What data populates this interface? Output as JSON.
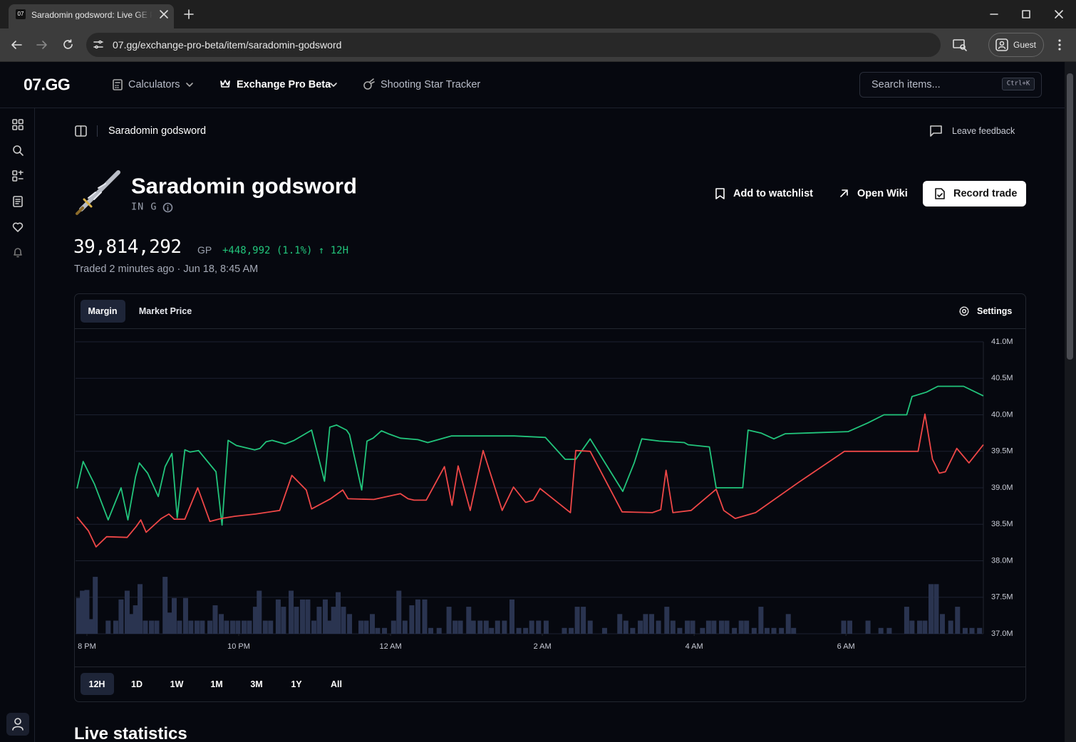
{
  "browser": {
    "tab_icon": "07",
    "tab_title": "Saradomin godsword: Live GE P",
    "url": "07.gg/exchange-pro-beta/item/saradomin-godsword",
    "profile": "Guest"
  },
  "nav": {
    "logo": "07.GG",
    "links": [
      "Calculators",
      "Exchange Pro Beta",
      "Shooting Star Tracker"
    ],
    "search_placeholder": "Search items...",
    "search_shortcut": "Ctrl+K"
  },
  "breadcrumb": "Saradomin godsword",
  "feedback": "Leave feedback",
  "item": {
    "name": "Saradomin godsword",
    "code": "IN G",
    "actions": [
      "Add to watchlist",
      "Open Wiki",
      "Record trade"
    ],
    "price": "39,814,292",
    "unit": "GP",
    "change": "+448,992 (1.1%) ↑ 12H",
    "traded": "Traded 2 minutes ago · Jun 18, 8:45 AM"
  },
  "chart_tabs": [
    "Margin",
    "Market Price"
  ],
  "settings": "Settings",
  "chart_data": {
    "type": "line",
    "grid": true,
    "xlim": [
      19.85,
      31.81
    ],
    "xticks": [
      {
        "value": 20,
        "label": "8 PM"
      },
      {
        "value": 22,
        "label": "10 PM"
      },
      {
        "value": 24,
        "label": "12 AM"
      },
      {
        "value": 26,
        "label": "2 AM"
      },
      {
        "value": 28,
        "label": "4 AM"
      },
      {
        "value": 30,
        "label": "6 AM"
      }
    ],
    "ylim": [
      37,
      41
    ],
    "yticks": [
      {
        "value": 37,
        "label": "37.0M"
      },
      {
        "value": 37.5,
        "label": "37.5M"
      },
      {
        "value": 38,
        "label": "38.0M"
      },
      {
        "value": 38.5,
        "label": "38.5M"
      },
      {
        "value": 39,
        "label": "39.0M"
      },
      {
        "value": 39.5,
        "label": "39.5M"
      },
      {
        "value": 40,
        "label": "40.0M"
      },
      {
        "value": 40.5,
        "label": "40.5M"
      },
      {
        "value": 41,
        "label": "41.0M"
      }
    ],
    "y2lim": [
      0,
      40
    ],
    "series": [
      {
        "type": "bar",
        "axis": "y2",
        "color": "#2a3450",
        "x": [
          19.89,
          19.94,
          20.0,
          20.06,
          20.11,
          20.28,
          20.38,
          20.45,
          20.53,
          20.58,
          20.64,
          20.7,
          20.77,
          20.85,
          20.92,
          21.03,
          21.09,
          21.15,
          21.22,
          21.3,
          21.37,
          21.45,
          21.52,
          21.62,
          21.69,
          21.77,
          21.84,
          21.92,
          21.99,
          22.07,
          22.14,
          22.22,
          22.27,
          22.35,
          22.42,
          22.52,
          22.59,
          22.69,
          22.76,
          22.84,
          22.91,
          22.99,
          23.06,
          23.14,
          23.19,
          23.25,
          23.31,
          23.38,
          23.46,
          23.61,
          23.68,
          23.76,
          23.83,
          23.92,
          24.04,
          24.11,
          24.19,
          24.28,
          24.36,
          24.45,
          24.53,
          24.64,
          24.77,
          24.85,
          24.92,
          25.03,
          25.09,
          25.18,
          25.26,
          25.33,
          25.41,
          25.5,
          25.6,
          25.69,
          25.78,
          25.86,
          25.95,
          26.05,
          26.29,
          26.38,
          26.46,
          26.54,
          26.63,
          26.82,
          27.02,
          27.1,
          27.19,
          27.29,
          27.36,
          27.44,
          27.53,
          27.64,
          27.72,
          27.81,
          27.91,
          27.98,
          28.11,
          28.19,
          28.26,
          28.36,
          28.43,
          28.53,
          28.62,
          28.69,
          28.79,
          28.88,
          28.96,
          29.05,
          29.15,
          29.24,
          29.31,
          29.97,
          30.05,
          30.29,
          30.46,
          30.57,
          30.8,
          30.87,
          30.97,
          31.04,
          31.12,
          31.19,
          31.27,
          31.38,
          31.47,
          31.57,
          31.66,
          31.76
        ],
        "values": [
          4.9,
          5.9,
          6.0,
          2.0,
          7.8,
          1.8,
          1.8,
          4.7,
          5.9,
          2.7,
          3.9,
          6.8,
          1.8,
          1.8,
          1.8,
          7.8,
          2.9,
          4.9,
          1.8,
          4.9,
          1.8,
          1.8,
          1.8,
          1.8,
          3.9,
          2.7,
          1.8,
          1.8,
          1.8,
          1.8,
          1.8,
          3.7,
          5.9,
          1.8,
          1.8,
          4.7,
          3.7,
          5.9,
          3.7,
          4.7,
          4.7,
          1.8,
          3.7,
          4.7,
          1.8,
          3.7,
          5.7,
          3.7,
          2.7,
          1.8,
          1.8,
          2.7,
          0.8,
          0.8,
          1.8,
          5.9,
          1.8,
          3.9,
          4.7,
          4.7,
          0.8,
          0.8,
          3.7,
          1.8,
          1.8,
          3.7,
          1.8,
          1.8,
          1.8,
          0.8,
          1.8,
          1.8,
          4.7,
          0.8,
          0.8,
          1.8,
          1.8,
          1.8,
          0.8,
          0.8,
          3.7,
          3.7,
          1.8,
          0.8,
          2.7,
          1.8,
          0.8,
          1.8,
          2.7,
          2.7,
          1.8,
          3.7,
          1.8,
          0.8,
          1.8,
          1.8,
          0.8,
          1.8,
          1.8,
          1.8,
          1.8,
          0.8,
          1.8,
          1.8,
          0.8,
          3.7,
          0.8,
          0.8,
          0.8,
          2.7,
          0.8,
          1.8,
          1.8,
          1.8,
          0.8,
          0.8,
          3.7,
          1.8,
          1.8,
          1.8,
          6.8,
          6.8,
          2.7,
          1.8,
          3.7,
          0.8,
          0.8,
          0.8
        ]
      },
      {
        "color": "#22c57c",
        "x": [
          19.87,
          19.95,
          20.1,
          20.28,
          20.45,
          20.54,
          20.64,
          20.69,
          20.8,
          20.94,
          21.03,
          21.12,
          21.19,
          21.29,
          21.36,
          21.47,
          21.7,
          21.78,
          21.86,
          21.97,
          22.21,
          22.28,
          22.36,
          22.44,
          22.61,
          22.73,
          22.96,
          23.13,
          23.2,
          23.29,
          23.42,
          23.46,
          23.62,
          23.69,
          23.77,
          23.88,
          23.97,
          24.13,
          24.36,
          24.49,
          24.8,
          25.63,
          26.04,
          26.3,
          26.44,
          26.63,
          27.06,
          27.21,
          27.31,
          27.54,
          27.87,
          27.92,
          28.2,
          28.29,
          28.64,
          28.71,
          28.88,
          29.05,
          29.2,
          30.03,
          30.29,
          30.5,
          30.8,
          30.87,
          31.06,
          31.21,
          31.55,
          31.81
        ],
        "values": [
          38.99,
          39.36,
          39.05,
          38.56,
          39.0,
          38.56,
          39.15,
          39.34,
          39.2,
          38.88,
          39.29,
          39.47,
          38.59,
          39.52,
          39.49,
          39.51,
          39.22,
          38.49,
          39.65,
          39.58,
          39.52,
          39.54,
          39.63,
          39.65,
          39.6,
          39.65,
          39.79,
          39.09,
          39.83,
          39.86,
          39.79,
          39.73,
          38.97,
          39.64,
          39.68,
          39.78,
          39.74,
          39.68,
          39.66,
          39.62,
          39.71,
          39.71,
          39.69,
          39.39,
          39.39,
          39.67,
          38.95,
          39.34,
          39.67,
          39.64,
          39.62,
          39.59,
          39.56,
          39.0,
          39.0,
          39.79,
          39.75,
          39.67,
          39.74,
          39.77,
          39.89,
          40.0,
          40.0,
          40.25,
          40.31,
          40.39,
          40.39,
          40.26
        ]
      },
      {
        "color": "#ef4747",
        "x": [
          19.87,
          20.02,
          20.12,
          20.26,
          20.53,
          20.65,
          20.71,
          20.78,
          20.98,
          21.08,
          21.15,
          21.29,
          21.46,
          21.62,
          21.77,
          21.95,
          22.22,
          22.54,
          22.7,
          22.89,
          22.96,
          23.21,
          23.37,
          23.44,
          23.78,
          24.13,
          24.23,
          24.31,
          24.47,
          24.71,
          24.81,
          24.89,
          25.05,
          25.22,
          25.47,
          25.62,
          25.78,
          25.88,
          25.97,
          26.37,
          26.44,
          26.63,
          27.05,
          27.45,
          27.56,
          27.63,
          27.72,
          27.96,
          28.29,
          28.39,
          28.54,
          28.81,
          29.37,
          29.98,
          30.95,
          31.04,
          31.14,
          31.23,
          31.31,
          31.46,
          31.62,
          31.81
        ],
        "values": [
          38.6,
          38.41,
          38.19,
          38.33,
          38.32,
          38.47,
          38.56,
          38.39,
          38.58,
          38.64,
          38.57,
          38.57,
          39.0,
          38.54,
          38.58,
          38.61,
          38.64,
          38.69,
          39.17,
          38.97,
          38.71,
          38.85,
          38.97,
          38.85,
          38.84,
          38.92,
          38.85,
          38.83,
          38.83,
          39.29,
          38.76,
          39.3,
          38.69,
          39.51,
          38.69,
          39.01,
          38.8,
          38.83,
          38.99,
          38.66,
          39.51,
          39.5,
          38.67,
          38.66,
          38.7,
          39.24,
          38.66,
          38.69,
          38.98,
          38.69,
          38.58,
          38.66,
          39.07,
          39.5,
          39.5,
          40.01,
          39.39,
          39.2,
          39.22,
          39.54,
          39.34,
          39.59
        ]
      }
    ]
  },
  "ranges": [
    "12H",
    "1D",
    "1W",
    "1M",
    "3M",
    "1Y",
    "All"
  ],
  "section_title": "Live statistics"
}
